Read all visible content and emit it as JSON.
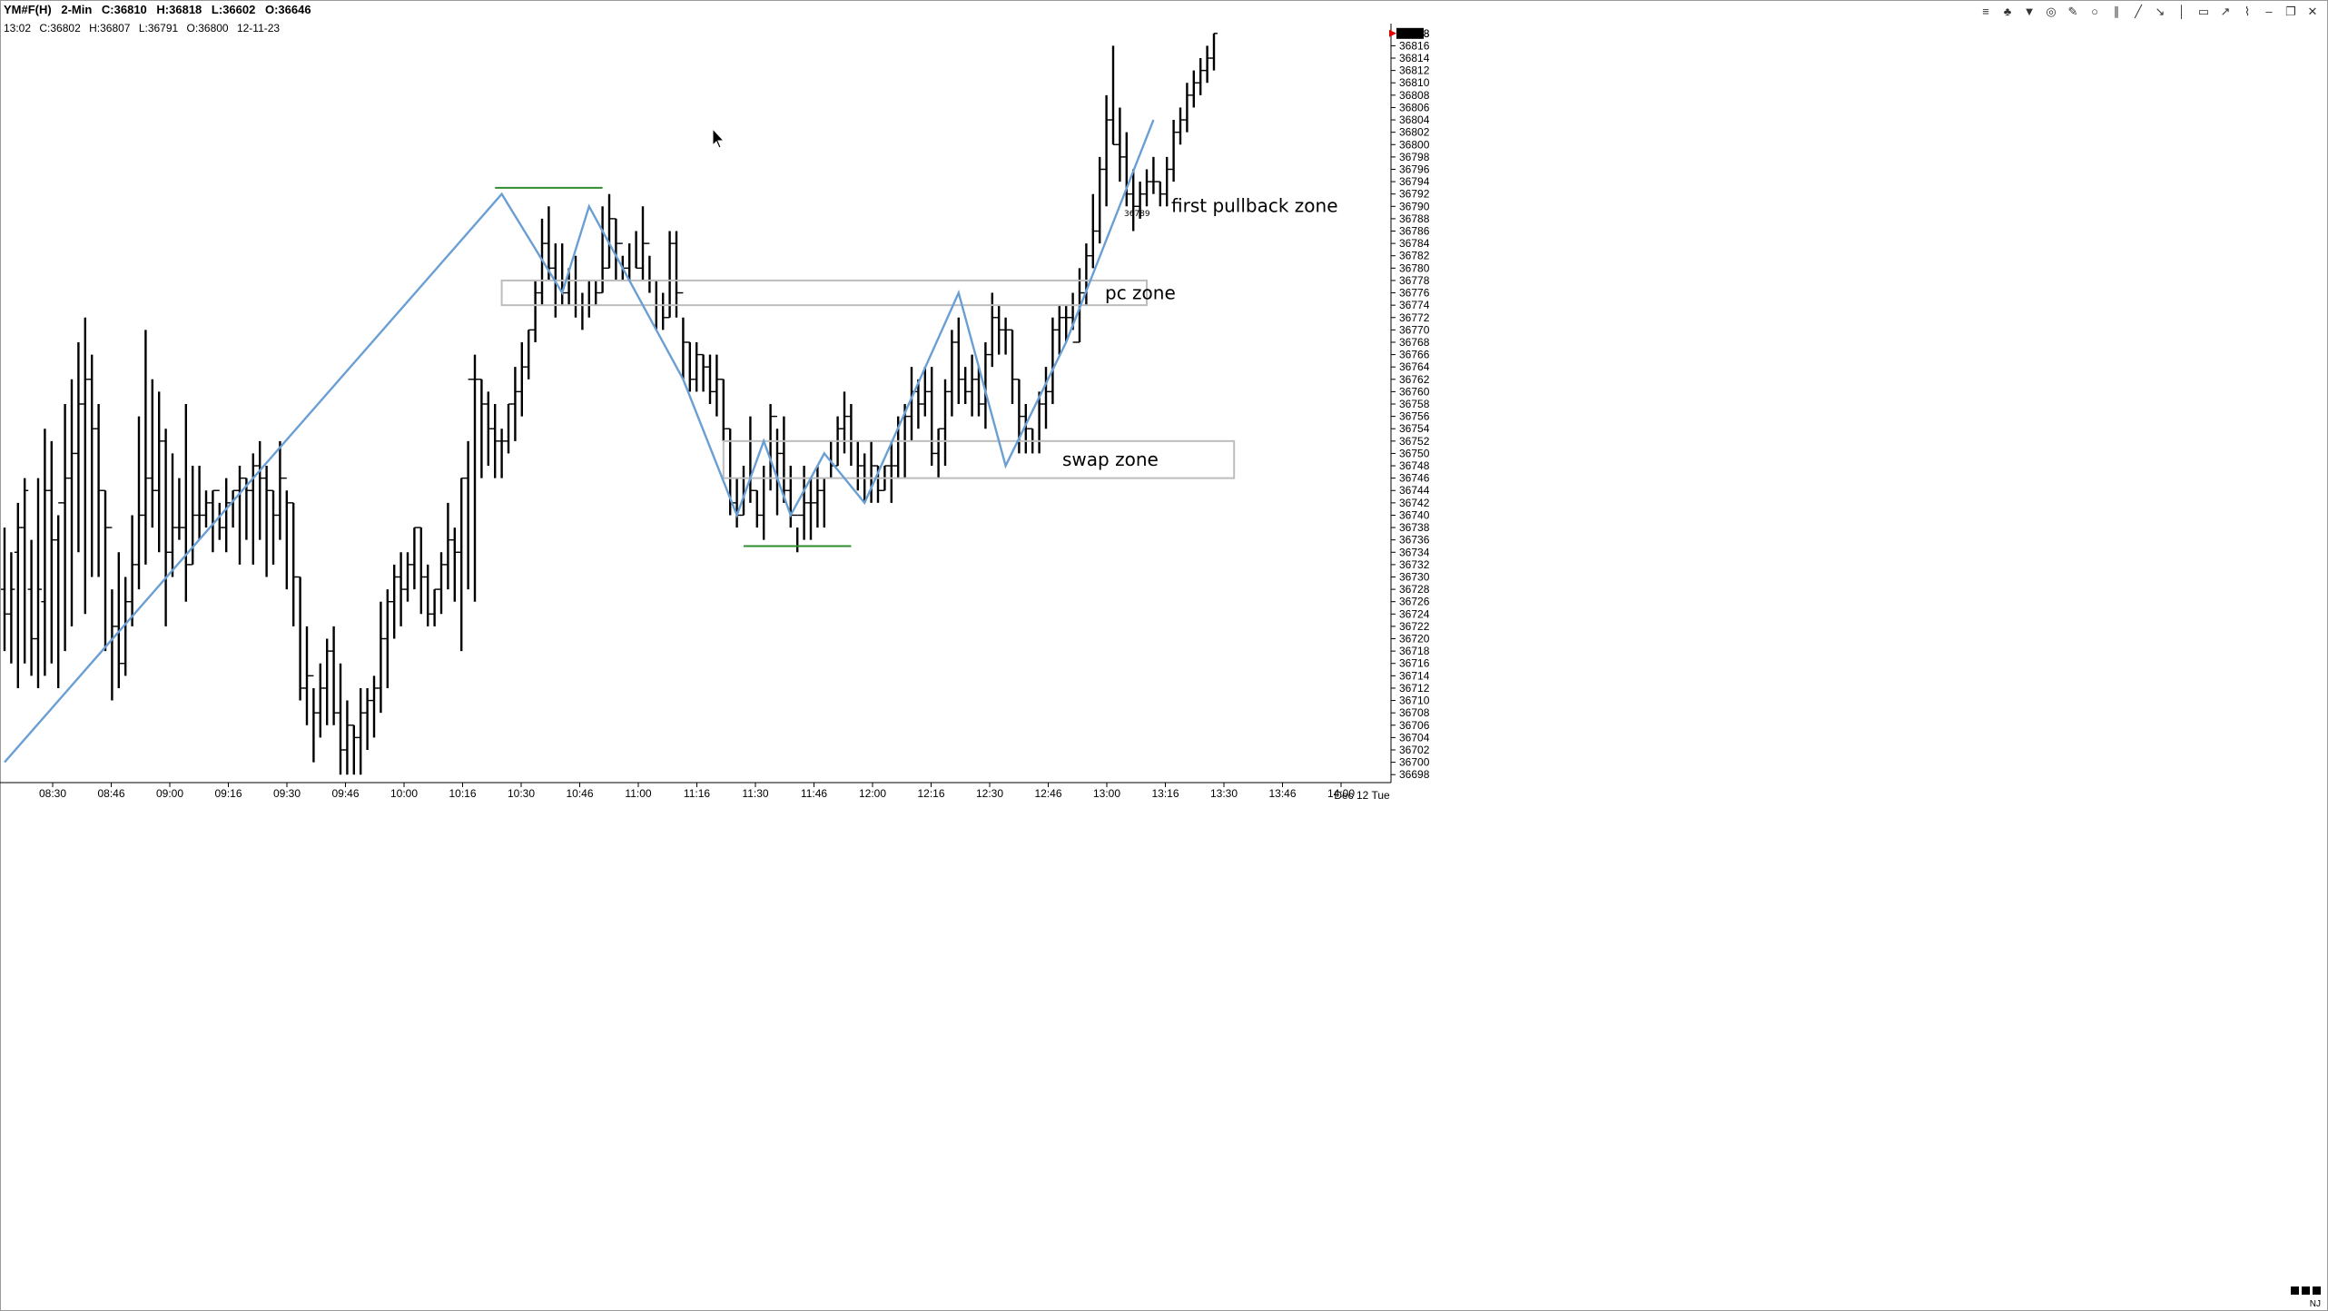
{
  "header": {
    "symbol": "YM#F(H)",
    "interval": "2-Min",
    "close": "C:36810",
    "high": "H:36818",
    "low": "L:36602",
    "open": "O:36646"
  },
  "bar_info": {
    "time": "13:02",
    "close": "C:36802",
    "high": "H:36807",
    "low": "L:36791",
    "open": "O:36800",
    "date": "12-11-23"
  },
  "footer": {
    "timezone": "NJ"
  },
  "toolbar": [
    {
      "icon": "stack-icon",
      "glyph": "≡"
    },
    {
      "icon": "tree-icon",
      "glyph": "♣"
    },
    {
      "icon": "arrow-down-icon",
      "glyph": "▼"
    },
    {
      "icon": "target-icon",
      "glyph": "◎"
    },
    {
      "icon": "pencil-icon",
      "glyph": "✎"
    },
    {
      "icon": "circle-icon",
      "glyph": "○"
    },
    {
      "icon": "parallel-lines-icon",
      "glyph": "∥"
    },
    {
      "icon": "trend-line-icon",
      "glyph": "╱"
    },
    {
      "icon": "ray-icon",
      "glyph": "↘"
    },
    {
      "icon": "vertical-line-icon",
      "glyph": "│"
    },
    {
      "icon": "rectangle-icon",
      "glyph": "▭"
    },
    {
      "icon": "arrow-icon",
      "glyph": "↗"
    },
    {
      "icon": "zigzag-icon",
      "glyph": "⌇"
    },
    {
      "icon": "minimize-icon",
      "glyph": "–"
    },
    {
      "icon": "restore-icon",
      "glyph": "❐"
    },
    {
      "icon": "close-icon",
      "glyph": "✕"
    }
  ],
  "chart_data": {
    "type": "bar",
    "subtype": "OHLC",
    "title": "YM#F(H) 2-Min",
    "date_label": "Dec 12 Tue",
    "ylim": [
      36697,
      36819
    ],
    "y_tick_step": 2,
    "y_tick_first": 36698,
    "last_price_tag": "36818",
    "x_ticks": [
      "08:30",
      "08:46",
      "09:00",
      "09:16",
      "09:30",
      "09:46",
      "10:00",
      "10:16",
      "10:30",
      "10:46",
      "11:00",
      "11:16",
      "11:30",
      "11:46",
      "12:00",
      "12:16",
      "12:30",
      "12:46",
      "13:00",
      "13:16",
      "13:30",
      "13:46",
      "14:00"
    ],
    "bars": [
      [
        36738,
        36718,
        36728,
        36724
      ],
      [
        36734,
        36716,
        36724,
        36728
      ],
      [
        36742,
        36712,
        36734,
        36738
      ],
      [
        36746,
        36716,
        36738,
        36744
      ],
      [
        36736,
        36714,
        36728,
        36720
      ],
      [
        36746,
        36712,
        36720,
        36728
      ],
      [
        36754,
        36714,
        36726,
        36744
      ],
      [
        36752,
        36716,
        36744,
        36736
      ],
      [
        36740,
        36712,
        36736,
        36742
      ],
      [
        36758,
        36718,
        36742,
        36746
      ],
      [
        36762,
        36722,
        36746,
        36750
      ],
      [
        36768,
        36734,
        36750,
        36758
      ],
      [
        36772,
        36724,
        36758,
        36762
      ],
      [
        36766,
        36730,
        36762,
        36754
      ],
      [
        36758,
        36730,
        36754,
        36744
      ],
      [
        36744,
        36718,
        36744,
        36738
      ],
      [
        36728,
        36710,
        36738,
        36722
      ],
      [
        36734,
        36712,
        36722,
        36716
      ],
      [
        36730,
        36714,
        36716,
        36726
      ],
      [
        36740,
        36722,
        36726,
        36732
      ],
      [
        36756,
        36728,
        36732,
        36740
      ],
      [
        36770,
        36732,
        36740,
        36746
      ],
      [
        36762,
        36738,
        36746,
        36744
      ],
      [
        36760,
        36734,
        36744,
        36752
      ],
      [
        36754,
        36722,
        36752,
        36734
      ],
      [
        36750,
        36730,
        36734,
        36738
      ],
      [
        36746,
        36736,
        36738,
        36738
      ],
      [
        36758,
        36726,
        36738,
        36732
      ],
      [
        36748,
        36732,
        36732,
        36740
      ],
      [
        36748,
        36736,
        36740,
        36740
      ],
      [
        36744,
        36738,
        36740,
        36742
      ],
      [
        36744,
        36734,
        36742,
        36744
      ],
      [
        36742,
        36736,
        36744,
        36738
      ],
      [
        36746,
        36734,
        36738,
        36742
      ],
      [
        36744,
        36738,
        36742,
        36744
      ],
      [
        36748,
        36732,
        36744,
        36746
      ],
      [
        36746,
        36736,
        36746,
        36744
      ],
      [
        36750,
        36732,
        36744,
        36748
      ],
      [
        36752,
        36736,
        36748,
        36746
      ],
      [
        36748,
        36730,
        36746,
        36744
      ],
      [
        36744,
        36732,
        36744,
        36740
      ],
      [
        36752,
        36736,
        36740,
        36746
      ],
      [
        36744,
        36728,
        36746,
        36742
      ],
      [
        36742,
        36722,
        36742,
        36730
      ],
      [
        36730,
        36710,
        36730,
        36712
      ],
      [
        36722,
        36706,
        36712,
        36714
      ],
      [
        36712,
        36700,
        36714,
        36708
      ],
      [
        36716,
        36704,
        36708,
        36712
      ],
      [
        36720,
        36706,
        36712,
        36718
      ],
      [
        36722,
        36706,
        36718,
        36708
      ],
      [
        36716,
        36698,
        36708,
        36702
      ],
      [
        36710,
        36698,
        36702,
        36706
      ],
      [
        36706,
        36698,
        36706,
        36704
      ],
      [
        36712,
        36698,
        36704,
        36708
      ],
      [
        36712,
        36702,
        36708,
        36710
      ],
      [
        36714,
        36704,
        36710,
        36712
      ],
      [
        36726,
        36708,
        36712,
        36720
      ],
      [
        36728,
        36712,
        36720,
        36726
      ],
      [
        36732,
        36720,
        36726,
        36730
      ],
      [
        36734,
        36722,
        36730,
        36728
      ],
      [
        36734,
        36726,
        36728,
        36732
      ],
      [
        36738,
        36728,
        36732,
        36738
      ],
      [
        36738,
        36724,
        36738,
        36730
      ],
      [
        36732,
        36722,
        36730,
        36724
      ],
      [
        36728,
        36722,
        36724,
        36728
      ],
      [
        36734,
        36724,
        36728,
        36732
      ],
      [
        36742,
        36728,
        36732,
        36736
      ],
      [
        36738,
        36726,
        36736,
        36734
      ],
      [
        36746,
        36718,
        36734,
        36746
      ],
      [
        36752,
        36728,
        36746,
        36762
      ],
      [
        36766,
        36726,
        36762,
        36762
      ],
      [
        36762,
        36746,
        36762,
        36758
      ],
      [
        36760,
        36748,
        36758,
        36754
      ],
      [
        36758,
        36746,
        36754,
        36752
      ],
      [
        36754,
        36746,
        36752,
        36752
      ],
      [
        36758,
        36750,
        36752,
        36758
      ],
      [
        36764,
        36752,
        36758,
        36760
      ],
      [
        36768,
        36756,
        36760,
        36764
      ],
      [
        36770,
        36762,
        36764,
        36770
      ],
      [
        36778,
        36768,
        36770,
        36776
      ],
      [
        36788,
        36774,
        36776,
        36784
      ],
      [
        36790,
        36778,
        36784,
        36780
      ],
      [
        36784,
        36772,
        36780,
        36778
      ],
      [
        36784,
        36774,
        36778,
        36776
      ],
      [
        36780,
        36774,
        36776,
        36778
      ],
      [
        36782,
        36772,
        36778,
        36774
      ],
      [
        36776,
        36770,
        36774,
        36774
      ],
      [
        36778,
        36772,
        36774,
        36774
      ],
      [
        36778,
        36774,
        36774,
        36776
      ],
      [
        36790,
        36776,
        36776,
        36780
      ],
      [
        36792,
        36780,
        36780,
        36788
      ],
      [
        36788,
        36778,
        36788,
        36784
      ],
      [
        36782,
        36778,
        36784,
        36780
      ],
      [
        36784,
        36778,
        36780,
        36778
      ],
      [
        36786,
        36780,
        36778,
        36780
      ],
      [
        36790,
        36778,
        36780,
        36784
      ],
      [
        36782,
        36776,
        36784,
        36778
      ],
      [
        36778,
        36770,
        36778,
        36774
      ],
      [
        36776,
        36770,
        36774,
        36772
      ],
      [
        36786,
        36772,
        36772,
        36784
      ],
      [
        36786,
        36772,
        36784,
        36776
      ],
      [
        36772,
        36762,
        36776,
        36768
      ],
      [
        36768,
        36760,
        36768,
        36762
      ],
      [
        36768,
        36760,
        36762,
        36766
      ],
      [
        36766,
        36760,
        36766,
        36764
      ],
      [
        36766,
        36758,
        36764,
        36760
      ],
      [
        36766,
        36756,
        36760,
        36762
      ],
      [
        36762,
        36752,
        36762,
        36754
      ],
      [
        36754,
        36740,
        36754,
        36742
      ],
      [
        36746,
        36738,
        36742,
        36740
      ],
      [
        36748,
        36740,
        36740,
        36746
      ],
      [
        36756,
        36742,
        36746,
        36744
      ],
      [
        36744,
        36738,
        36744,
        36740
      ],
      [
        36748,
        36736,
        36740,
        36746
      ],
      [
        36758,
        36744,
        36746,
        36756
      ],
      [
        36754,
        36740,
        36756,
        36750
      ],
      [
        36756,
        36742,
        36750,
        36744
      ],
      [
        36748,
        36738,
        36744,
        36740
      ],
      [
        36738,
        36734,
        36740,
        36740
      ],
      [
        36748,
        36736,
        36740,
        36742
      ],
      [
        36746,
        36736,
        36742,
        36742
      ],
      [
        36748,
        36738,
        36742,
        36744
      ],
      [
        36746,
        36738,
        36744,
        36746
      ],
      [
        36752,
        36746,
        36746,
        36748
      ],
      [
        36756,
        36748,
        36748,
        36754
      ],
      [
        36760,
        36750,
        36754,
        36756
      ],
      [
        36758,
        36748,
        36756,
        36752
      ],
      [
        36752,
        36744,
        36752,
        36748
      ],
      [
        36750,
        36742,
        36748,
        36746
      ],
      [
        36752,
        36742,
        36746,
        36748
      ],
      [
        36748,
        36742,
        36748,
        36744
      ],
      [
        36748,
        36744,
        36744,
        36748
      ],
      [
        36752,
        36742,
        36748,
        36748
      ],
      [
        36756,
        36746,
        36748,
        36752
      ],
      [
        36758,
        36746,
        36752,
        36756
      ],
      [
        36764,
        36752,
        36756,
        36760
      ],
      [
        36762,
        36754,
        36760,
        36758
      ],
      [
        36764,
        36756,
        36758,
        36760
      ],
      [
        36764,
        36748,
        36760,
        36750
      ],
      [
        36754,
        36746,
        36750,
        36754
      ],
      [
        36762,
        36748,
        36754,
        36760
      ],
      [
        36770,
        36756,
        36760,
        36768
      ],
      [
        36772,
        36758,
        36768,
        36762
      ],
      [
        36764,
        36758,
        36762,
        36760
      ],
      [
        36766,
        36756,
        36760,
        36762
      ],
      [
        36764,
        36756,
        36762,
        36758
      ],
      [
        36768,
        36754,
        36758,
        36766
      ],
      [
        36776,
        36764,
        36766,
        36772
      ],
      [
        36774,
        36766,
        36772,
        36770
      ],
      [
        36772,
        36766,
        36770,
        36770
      ],
      [
        36770,
        36758,
        36770,
        36762
      ],
      [
        36762,
        36750,
        36762,
        36756
      ],
      [
        36758,
        36750,
        36756,
        36754
      ],
      [
        36754,
        36750,
        36754,
        36752
      ],
      [
        36760,
        36750,
        36752,
        36758
      ],
      [
        36764,
        36754,
        36758,
        36760
      ],
      [
        36772,
        36758,
        36760,
        36770
      ],
      [
        36774,
        36766,
        36770,
        36772
      ],
      [
        36774,
        36768,
        36772,
        36772
      ],
      [
        36776,
        36770,
        36772,
        36768
      ],
      [
        36780,
        36768,
        36768,
        36776
      ],
      [
        36784,
        36774,
        36776,
        36782
      ],
      [
        36792,
        36780,
        36782,
        36786
      ],
      [
        36798,
        36784,
        36786,
        36796
      ],
      [
        36808,
        36790,
        36796,
        36804
      ],
      [
        36816,
        36800,
        36804,
        36800
      ],
      [
        36806,
        36794,
        36800,
        36798
      ],
      [
        36802,
        36790,
        36798,
        36792
      ],
      [
        36796,
        36786,
        36792,
        36790
      ],
      [
        36794,
        36788,
        36790,
        36792
      ],
      [
        36796,
        36790,
        36792,
        36794
      ],
      [
        36798,
        36792,
        36794,
        36794
      ],
      [
        36794,
        36790,
        36794,
        36792
      ],
      [
        36798,
        36790,
        36792,
        36796
      ],
      [
        36804,
        36794,
        36796,
        36802
      ],
      [
        36806,
        36800,
        36802,
        36804
      ],
      [
        36810,
        36802,
        36804,
        36808
      ],
      [
        36812,
        36806,
        36808,
        36810
      ],
      [
        36814,
        36808,
        36810,
        36812
      ],
      [
        36816,
        36810,
        36812,
        36814
      ],
      [
        36818,
        36812,
        36814,
        36818
      ]
    ],
    "zigzag": [
      [
        0,
        36700
      ],
      [
        28,
        36792
      ],
      [
        32,
        36776
      ],
      [
        35,
        36790
      ],
      [
        44,
        36762
      ],
      [
        51,
        36740
      ],
      [
        54,
        36752
      ],
      [
        58,
        36740
      ],
      [
        61,
        36750
      ],
      [
        66,
        36742
      ],
      [
        77,
        36776
      ],
      [
        86,
        36748
      ],
      [
        93,
        36768
      ],
      [
        100,
        36804
      ]
    ],
    "zones": [
      {
        "label": "pc zone",
        "top": 36778,
        "bottom": 36774
      },
      {
        "label": "swap zone",
        "top": 36752,
        "bottom": 36746
      }
    ],
    "levels": [
      {
        "price": 36793,
        "label": ""
      },
      {
        "price": 36735,
        "label": ""
      }
    ],
    "annotations": [
      {
        "text": "first pullback zone",
        "price": 36790
      },
      {
        "text": "36789",
        "price": 36789
      }
    ]
  }
}
